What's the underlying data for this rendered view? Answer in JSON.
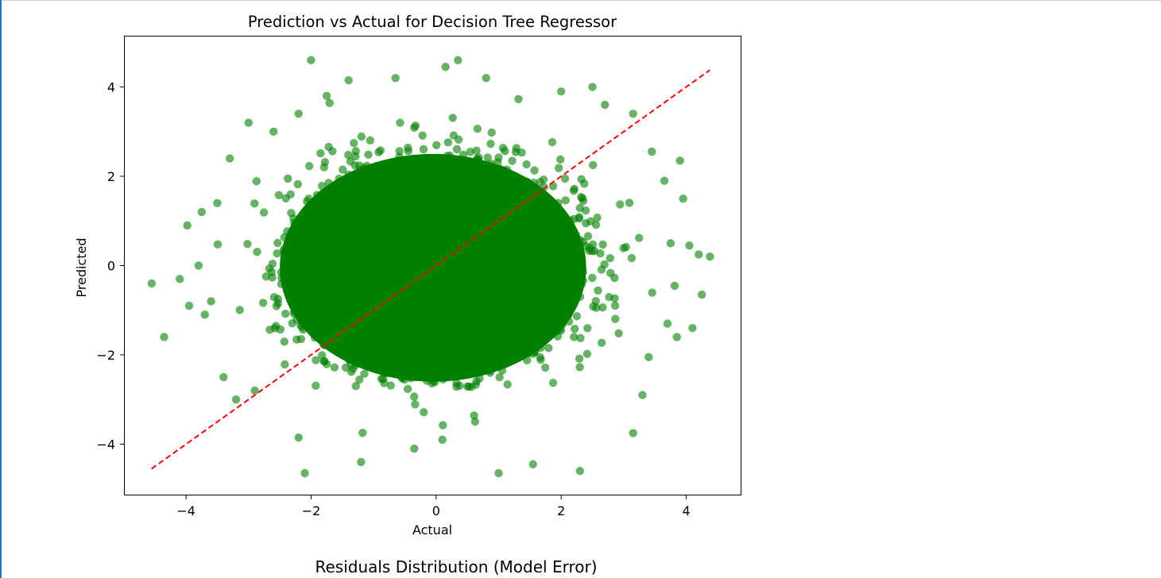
{
  "chart_data": {
    "type": "scatter",
    "title": "Prediction vs Actual for Decision Tree Regressor",
    "xlabel": "Actual",
    "ylabel": "Predicted",
    "xlim": [
      -4.98,
      4.87
    ],
    "ylim": [
      -5.13,
      5.13
    ],
    "xticks": [
      -4,
      -2,
      0,
      2,
      4
    ],
    "yticks": [
      -4,
      -2,
      0,
      2,
      4
    ],
    "xtick_labels": [
      "−4",
      "−2",
      "0",
      "2",
      "4"
    ],
    "ytick_labels": [
      "−4",
      "−2",
      "0",
      "2",
      "4"
    ],
    "grid": false,
    "point_color": "#008000",
    "point_alpha": 0.6,
    "line_color": "#ff0000",
    "line_style": "dashed",
    "series": [
      {
        "type": "scatter",
        "distribution": "independent standard normal x and y, approx 50000 points",
        "outliers": [
          {
            "x": -4.55,
            "y": -0.4
          },
          {
            "x": -4.35,
            "y": -1.6
          },
          {
            "x": -4.1,
            "y": -0.3
          },
          {
            "x": -3.98,
            "y": 0.9
          },
          {
            "x": -3.95,
            "y": -0.9
          },
          {
            "x": -3.8,
            "y": 0.0
          },
          {
            "x": -3.75,
            "y": 1.2
          },
          {
            "x": -3.7,
            "y": -1.1
          },
          {
            "x": -3.6,
            "y": -0.8
          },
          {
            "x": -3.5,
            "y": 1.4
          },
          {
            "x": -3.4,
            "y": -2.5
          },
          {
            "x": -3.3,
            "y": 2.4
          },
          {
            "x": -3.2,
            "y": -3.0
          },
          {
            "x": -3.0,
            "y": 3.2
          },
          {
            "x": -2.9,
            "y": -2.8
          },
          {
            "x": -2.6,
            "y": 3.0
          },
          {
            "x": -2.2,
            "y": 3.4
          },
          {
            "x": -2.2,
            "y": -3.85
          },
          {
            "x": -2.1,
            "y": -4.65
          },
          {
            "x": -2.0,
            "y": 4.6
          },
          {
            "x": -1.75,
            "y": 3.8
          },
          {
            "x": -1.4,
            "y": 4.15
          },
          {
            "x": -1.2,
            "y": -4.4
          },
          {
            "x": -0.65,
            "y": 4.2
          },
          {
            "x": -0.35,
            "y": -4.1
          },
          {
            "x": 0.1,
            "y": -3.9
          },
          {
            "x": 0.15,
            "y": 4.45
          },
          {
            "x": 0.35,
            "y": 4.6
          },
          {
            "x": 0.8,
            "y": 4.2
          },
          {
            "x": 1.0,
            "y": -4.65
          },
          {
            "x": 1.55,
            "y": -4.45
          },
          {
            "x": 2.0,
            "y": 3.9
          },
          {
            "x": 2.3,
            "y": -4.6
          },
          {
            "x": 2.5,
            "y": 4.0
          },
          {
            "x": 2.7,
            "y": 3.6
          },
          {
            "x": 3.15,
            "y": -3.75
          },
          {
            "x": 3.15,
            "y": 3.4
          },
          {
            "x": 3.3,
            "y": -2.9
          },
          {
            "x": 3.4,
            "y": -2.05
          },
          {
            "x": 3.45,
            "y": 2.55
          },
          {
            "x": 3.65,
            "y": 1.9
          },
          {
            "x": 3.7,
            "y": -1.3
          },
          {
            "x": 3.75,
            "y": 0.5
          },
          {
            "x": 3.85,
            "y": -1.6
          },
          {
            "x": 3.9,
            "y": 2.35
          },
          {
            "x": 3.95,
            "y": 1.5
          },
          {
            "x": 4.05,
            "y": 0.45
          },
          {
            "x": 4.1,
            "y": -1.4
          },
          {
            "x": 4.2,
            "y": 0.25
          },
          {
            "x": 4.25,
            "y": -0.65
          },
          {
            "x": 4.38,
            "y": 0.2
          }
        ]
      },
      {
        "type": "line",
        "x": [
          -4.55,
          4.38
        ],
        "y": [
          -4.55,
          4.38
        ]
      }
    ]
  },
  "next_section": {
    "title": "Residuals Distribution (Model Error)"
  }
}
